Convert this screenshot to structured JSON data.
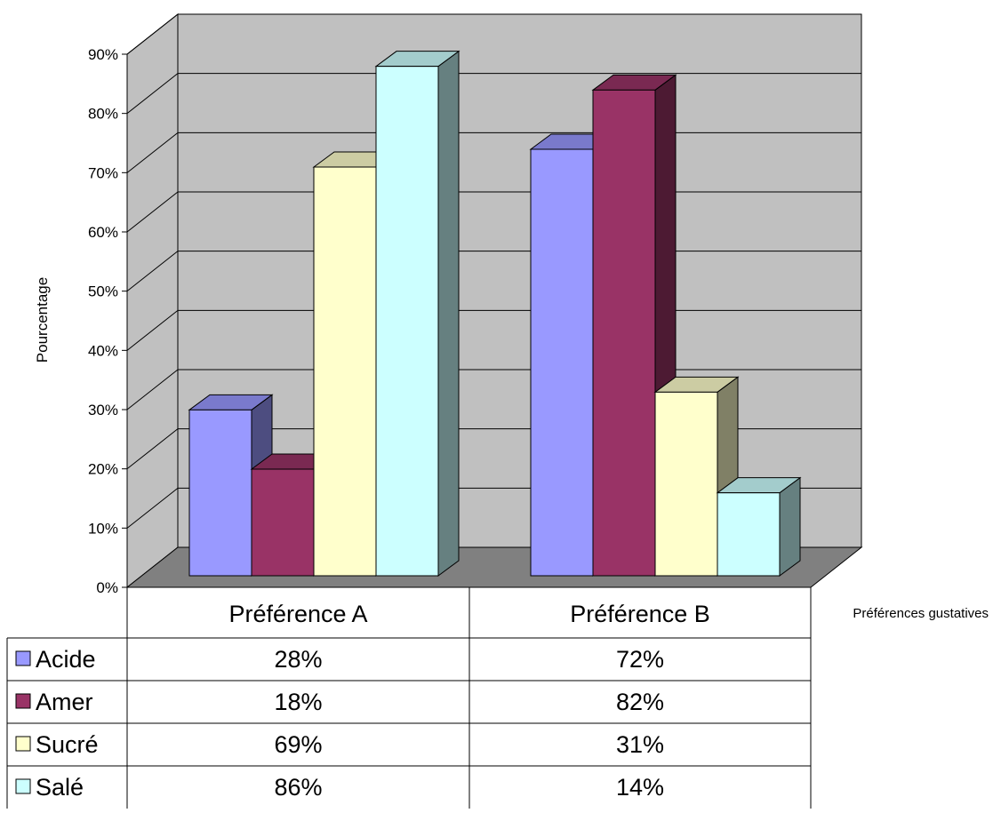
{
  "chart_data": {
    "type": "bar",
    "categories": [
      "Préférence A",
      "Préférence B"
    ],
    "series": [
      {
        "name": "Acide",
        "values": [
          28,
          72
        ],
        "color": "#9999ff"
      },
      {
        "name": "Amer",
        "values": [
          18,
          82
        ],
        "color": "#993366"
      },
      {
        "name": "Sucré",
        "values": [
          69,
          31
        ],
        "color": "#ffffcc"
      },
      {
        "name": "Salé",
        "values": [
          86,
          14
        ],
        "color": "#ccffff"
      }
    ],
    "value_labels": [
      [
        "28%",
        "72%"
      ],
      [
        "18%",
        "82%"
      ],
      [
        "69%",
        "31%"
      ],
      [
        "86%",
        "14%"
      ]
    ],
    "yticks": [
      "0%",
      "10%",
      "20%",
      "30%",
      "40%",
      "50%",
      "60%",
      "70%",
      "80%",
      "90%"
    ],
    "ylim": [
      0,
      90
    ],
    "ylabel": "Pourcentage",
    "xlabel": "Préférences gustatives",
    "grid": true,
    "legend": "data-table-below",
    "colors": {
      "wall": "#c0c0c0",
      "floor": "#808080"
    }
  }
}
